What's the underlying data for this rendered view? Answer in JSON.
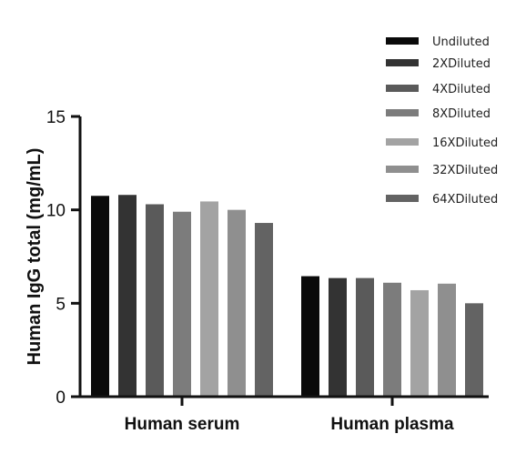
{
  "chart_data": {
    "type": "bar",
    "title": "",
    "xlabel": "",
    "ylabel": "Human IgG total (mg/mL)",
    "ylim": [
      0,
      15
    ],
    "yticks": [
      "0",
      "5",
      "10",
      "15"
    ],
    "grid": false,
    "legend_position": "top-right",
    "categories": [
      "Human serum",
      "Human plasma"
    ],
    "series": [
      {
        "name": "Undiluted",
        "color": "#0a0a0a",
        "values": [
          10.75,
          6.45
        ]
      },
      {
        "name": "2XDiluted",
        "color": "#333333",
        "values": [
          10.8,
          6.35
        ]
      },
      {
        "name": "4XDiluted",
        "color": "#5a5a5a",
        "values": [
          10.3,
          6.35
        ]
      },
      {
        "name": "8XDiluted",
        "color": "#7c7c7c",
        "values": [
          9.9,
          6.1
        ]
      },
      {
        "name": "16XDiluted",
        "color": "#a3a3a3",
        "values": [
          10.45,
          5.7
        ]
      },
      {
        "name": "32XDiluted",
        "color": "#8f8f8f",
        "values": [
          10.0,
          6.05
        ]
      },
      {
        "name": "64XDiluted",
        "color": "#636363",
        "values": [
          9.3,
          5.0
        ]
      }
    ]
  }
}
